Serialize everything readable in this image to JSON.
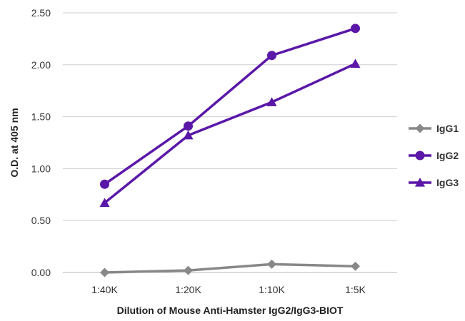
{
  "chart_data": {
    "type": "line",
    "title": "",
    "xlabel": "Dilution of Mouse Anti-Hamster IgG2/IgG3-BIOT",
    "ylabel": "O.D. at 405 nm",
    "categories": [
      "1:40K",
      "1:20K",
      "1:10K",
      "1:5K"
    ],
    "y_ticks": [
      "0.00",
      "0.50",
      "1.00",
      "1.50",
      "2.00",
      "2.50"
    ],
    "ylim": [
      0,
      2.5
    ],
    "grid": "horizontal",
    "legend_position": "right",
    "series": [
      {
        "name": "IgG1",
        "values": [
          0.0,
          0.02,
          0.08,
          0.06
        ],
        "color": "#888888",
        "marker": "diamond"
      },
      {
        "name": "IgG2",
        "values": [
          0.85,
          1.41,
          2.09,
          2.35
        ],
        "color": "#5a17a8",
        "marker": "circle"
      },
      {
        "name": "IgG3",
        "values": [
          0.67,
          1.32,
          1.64,
          2.01
        ],
        "color": "#5a17a8",
        "marker": "triangle"
      }
    ]
  }
}
